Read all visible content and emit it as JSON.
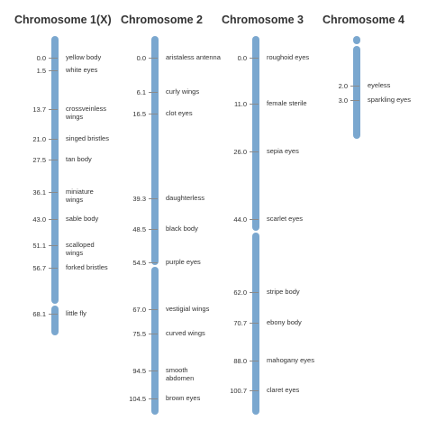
{
  "bar_color": "#7aa7cf",
  "chromosomes": [
    {
      "title": "Chromosome 1(X)",
      "genes": [
        {
          "pos": "0.0",
          "name": "yellow body"
        },
        {
          "pos": "1.5",
          "name": "white eyes"
        },
        {
          "pos": "13.7",
          "name": "crossveinless\nwings"
        },
        {
          "pos": "21.0",
          "name": "singed bristles"
        },
        {
          "pos": "27.5",
          "name": "tan body"
        },
        {
          "pos": "36.1",
          "name": "miniature\nwings"
        },
        {
          "pos": "43.0",
          "name": "sable body"
        },
        {
          "pos": "51.1",
          "name": "scalloped\nwings"
        },
        {
          "pos": "56.7",
          "name": "forked bristles"
        },
        {
          "pos": "68.1",
          "name": "little fly"
        }
      ]
    },
    {
      "title": "Chromosome 2",
      "genes": [
        {
          "pos": "0.0",
          "name": "aristaless antenna"
        },
        {
          "pos": "6.1",
          "name": "curly wings"
        },
        {
          "pos": "16.5",
          "name": "clot eyes"
        },
        {
          "pos": "39.3",
          "name": "daughterless"
        },
        {
          "pos": "48.5",
          "name": "black body"
        },
        {
          "pos": "54.5",
          "name": "purple eyes"
        },
        {
          "pos": "67.0",
          "name": "vestigial wings"
        },
        {
          "pos": "75.5",
          "name": "curved wings"
        },
        {
          "pos": "94.5",
          "name": "smooth\nabdomen"
        },
        {
          "pos": "104.5",
          "name": "brown eyes"
        }
      ]
    },
    {
      "title": "Chromosome 3",
      "genes": [
        {
          "pos": "0.0",
          "name": "roughoid eyes"
        },
        {
          "pos": "11.0",
          "name": "female sterile"
        },
        {
          "pos": "26.0",
          "name": "sepia eyes"
        },
        {
          "pos": "44.0",
          "name": "scarlet eyes"
        },
        {
          "pos": "62.0",
          "name": "stripe body"
        },
        {
          "pos": "70.7",
          "name": "ebony body"
        },
        {
          "pos": "88.0",
          "name": "mahogany eyes"
        },
        {
          "pos": "100.7",
          "name": "claret eyes"
        }
      ]
    },
    {
      "title": "Chromosome 4",
      "genes": [
        {
          "pos": "2.0",
          "name": "eyeless"
        },
        {
          "pos": "3.0",
          "name": "sparkling eyes"
        }
      ]
    }
  ]
}
